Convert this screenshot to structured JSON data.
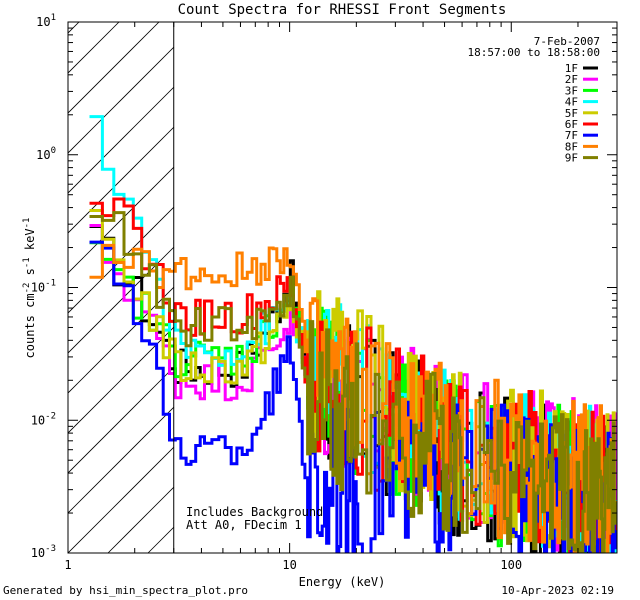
{
  "chart_data": {
    "type": "line",
    "title": "Count Spectra for RHESSI Front Segments",
    "xlabel": "Energy (keV)",
    "ylabel": {
      "base": "counts cm",
      "exp1": "-2",
      "mid1": " s",
      "exp2": "-1",
      "mid2": " keV",
      "exp3": "-1"
    },
    "xscale": "log",
    "yscale": "log",
    "xlim": [
      1,
      300
    ],
    "ylim": [
      0.001,
      10
    ],
    "xticks": [
      {
        "v": 1,
        "label": "1"
      },
      {
        "v": 10,
        "label": "10"
      },
      {
        "v": 100,
        "label": "100"
      }
    ],
    "yticks": [
      {
        "v": 0.001,
        "base": "10",
        "exp": "-3"
      },
      {
        "v": 0.01,
        "base": "10",
        "exp": "-2"
      },
      {
        "v": 0.1,
        "base": "10",
        "exp": "-1"
      },
      {
        "v": 1,
        "base": "10",
        "exp": "0"
      },
      {
        "v": 10,
        "base": "10",
        "exp": "1"
      }
    ],
    "legend": {
      "placement": "top-right",
      "date": "7-Feb-2007",
      "time_range": "18:57:00 to 18:58:00"
    },
    "hatched_region": [
      1,
      3
    ],
    "annotation": [
      "Includes Background",
      "Att A0, FDecim 1"
    ],
    "series": [
      {
        "name": "1F",
        "color": "#000000",
        "y_low": 0.025,
        "y_peak": 0.12,
        "y_mid": 0.02,
        "y_high": 0.0025,
        "y_start": 0.22
      },
      {
        "name": "2F",
        "color": "#ff00ff",
        "y_low": 0.02,
        "y_peak": 0.06,
        "y_mid": 0.02,
        "y_high": 0.003,
        "y_start": 0.22
      },
      {
        "name": "3F",
        "color": "#00ff00",
        "y_low": 0.03,
        "y_peak": 0.09,
        "y_mid": 0.02,
        "y_high": 0.0025,
        "y_start": 0.16
      },
      {
        "name": "4F",
        "color": "#00ffff",
        "y_low": 0.035,
        "y_peak": 0.08,
        "y_mid": 0.025,
        "y_high": 0.003,
        "y_start": 1.4
      },
      {
        "name": "5F",
        "color": "#cccc00",
        "y_low": 0.025,
        "y_peak": 0.07,
        "y_mid": 0.03,
        "y_high": 0.003,
        "y_start": 0.27
      },
      {
        "name": "6F",
        "color": "#ff0000",
        "y_low": 0.06,
        "y_peak": 0.1,
        "y_mid": 0.02,
        "y_high": 0.003,
        "y_start": 0.6
      },
      {
        "name": "7F",
        "color": "#0000ff",
        "y_low": 0.006,
        "y_peak": 0.035,
        "y_mid": 0.003,
        "y_high": 0.002,
        "y_start": 0.3
      },
      {
        "name": "8F",
        "color": "#ff8000",
        "y_low": 0.13,
        "y_peak": 0.2,
        "y_mid": 0.025,
        "y_high": 0.003,
        "y_start": 0.16
      },
      {
        "name": "9F",
        "color": "#808000",
        "y_low": 0.05,
        "y_peak": 0.09,
        "y_mid": 0.015,
        "y_high": 0.0025,
        "y_start": 0.45
      }
    ]
  },
  "footer": {
    "generated_by": "Generated by hsi_min_spectra_plot.pro",
    "timestamp": "10-Apr-2023 02:19"
  }
}
